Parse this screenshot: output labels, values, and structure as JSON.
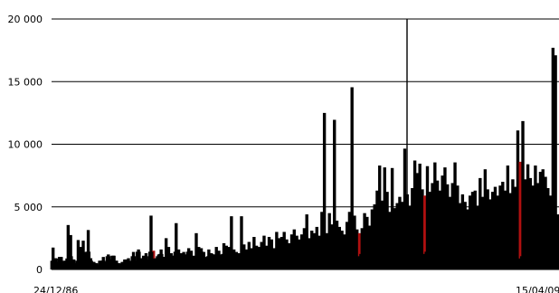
{
  "chart_data": {
    "type": "bar",
    "title": "",
    "xlabel": "",
    "ylabel": "",
    "ylim": [
      0,
      20000
    ],
    "y_ticks": [
      {
        "value": 0,
        "label": "0"
      },
      {
        "value": 5000,
        "label": "5 000"
      },
      {
        "value": 10000,
        "label": "10 000"
      },
      {
        "value": 15000,
        "label": "15 000"
      },
      {
        "value": 20000,
        "label": "20 000"
      }
    ],
    "x_tick_labels": [
      "24/12/86",
      "15/04/09"
    ],
    "grid": "horizontal",
    "legend": "none",
    "colors": {
      "bars": "#000000",
      "accent_bars": "#b01010",
      "grid": "#000000"
    },
    "series": [
      {
        "values": [
          1750,
          900,
          600,
          1000,
          400,
          700,
          3550,
          2750,
          800,
          500,
          2350,
          1800,
          2300,
          1400,
          3150,
          900,
          600,
          500,
          400,
          700,
          1000,
          600,
          1200,
          800,
          1100,
          700,
          500,
          450,
          600,
          800,
          900,
          600,
          1400,
          700,
          1600,
          900,
          1100,
          1300,
          800,
          4300,
          1500,
          900,
          1200,
          1600,
          1000,
          2500,
          1800,
          1300,
          1100,
          3700,
          1600,
          1300,
          1400,
          1200,
          1700,
          1500,
          1100,
          2900,
          1800,
          1700,
          1400,
          1000,
          1600,
          1300,
          1200,
          1800,
          1500,
          1200,
          2100,
          1900,
          1800,
          4250,
          1600,
          1400,
          1300,
          4250,
          2000,
          1600,
          2200,
          1700,
          2600,
          1900,
          1800,
          2200,
          2700,
          1900,
          2600,
          2400,
          1700,
          3000,
          2500,
          2600,
          3000,
          2400,
          2100,
          2800,
          3200,
          2700,
          2400,
          2800,
          3300,
          4400,
          2500,
          3100,
          2900,
          3400,
          2700,
          4600,
          12500,
          2900,
          4500,
          3600,
          11950,
          3900,
          3400,
          3100,
          2800,
          3800,
          4600,
          14550,
          4300,
          3200,
          2900,
          3300,
          4500,
          4200,
          3500,
          4800,
          5200,
          6300,
          8300,
          5500,
          8150,
          6200,
          4600,
          8100,
          4900,
          5300,
          5800,
          5400,
          9650,
          6000,
          5100,
          6500,
          8700,
          7700,
          8450,
          6400,
          5900,
          8250,
          6200,
          6900,
          8550,
          7100,
          6300,
          7500,
          8150,
          6800,
          5800,
          6900,
          8550,
          6700,
          5300,
          6000,
          5400,
          4800,
          5900,
          6200,
          6300,
          5100,
          7300,
          5800,
          8000,
          6400,
          5600,
          6200,
          6600,
          5900,
          6700,
          7000,
          6300,
          8300,
          6100,
          7200,
          6600,
          11100,
          8600,
          11850,
          7200,
          8400,
          7300,
          6700,
          8300,
          6900,
          7800,
          8000,
          7400,
          6500,
          5900,
          17700,
          17100,
          4400
        ]
      }
    ],
    "accent_bar_indices": [
      40,
      74,
      122,
      148,
      186,
      208,
      211
    ]
  }
}
